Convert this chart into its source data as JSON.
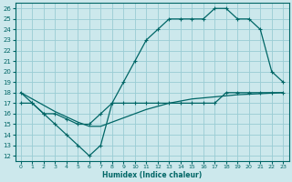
{
  "xlabel": "Humidex (Indice chaleur)",
  "bg_color": "#cce8ec",
  "grid_color": "#99ccd4",
  "line_color": "#006666",
  "xlim": [
    -0.5,
    23.5
  ],
  "ylim": [
    11.5,
    26.5
  ],
  "xticks": [
    0,
    1,
    2,
    3,
    4,
    5,
    6,
    7,
    8,
    9,
    10,
    11,
    12,
    13,
    14,
    15,
    16,
    17,
    18,
    19,
    20,
    21,
    22,
    23
  ],
  "yticks": [
    12,
    13,
    14,
    15,
    16,
    17,
    18,
    19,
    20,
    21,
    22,
    23,
    24,
    25,
    26
  ],
  "line1_x": [
    0,
    1,
    2,
    3,
    4,
    5,
    6,
    7,
    8,
    9,
    10,
    11,
    12,
    13,
    14,
    15,
    16,
    17,
    18,
    19,
    20,
    21,
    22,
    23
  ],
  "line1_y": [
    18,
    17,
    16,
    15,
    14,
    13,
    12,
    13,
    17,
    19,
    21,
    23,
    24,
    25,
    25,
    25,
    25,
    26,
    26,
    25,
    25,
    24,
    20,
    19
  ],
  "line2_x": [
    0,
    1,
    2,
    3,
    4,
    5,
    6,
    7,
    8,
    9,
    10,
    11,
    12,
    13,
    14,
    15,
    16,
    17,
    18,
    19,
    20,
    21,
    22,
    23
  ],
  "line2_y": [
    17,
    17,
    16,
    16,
    15.5,
    15,
    15,
    16,
    17,
    17,
    17,
    17,
    17,
    17,
    17,
    17,
    17,
    17,
    18,
    18,
    18,
    18,
    18,
    18
  ],
  "line3_x": [
    0,
    1,
    2,
    3,
    4,
    5,
    6,
    7,
    8,
    9,
    10,
    11,
    12,
    13,
    14,
    15,
    16,
    17,
    18,
    19,
    20,
    21,
    22,
    23
  ],
  "line3_y": [
    18,
    17.4,
    16.8,
    16.2,
    15.7,
    15.2,
    14.8,
    14.8,
    15.2,
    15.6,
    16.0,
    16.4,
    16.7,
    17.0,
    17.2,
    17.4,
    17.5,
    17.6,
    17.7,
    17.8,
    17.85,
    17.9,
    17.95,
    18.0
  ],
  "markersize": 2.0,
  "linewidth": 0.9
}
